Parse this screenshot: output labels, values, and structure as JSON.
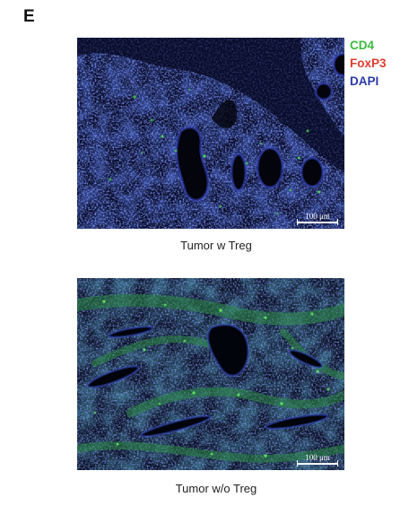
{
  "panel_label": "E",
  "legend": {
    "cd4": "CD4",
    "foxp3": "FoxP3",
    "dapi": "DAPI",
    "colors": {
      "cd4": "#3dba3d",
      "foxp3": "#e03b2e",
      "dapi": "#2b3aa8"
    }
  },
  "images": [
    {
      "caption": "Tumor w Treg",
      "scale_bar": "100 μm"
    },
    {
      "caption": "Tumor w/o Treg",
      "scale_bar": "100 μm"
    }
  ]
}
